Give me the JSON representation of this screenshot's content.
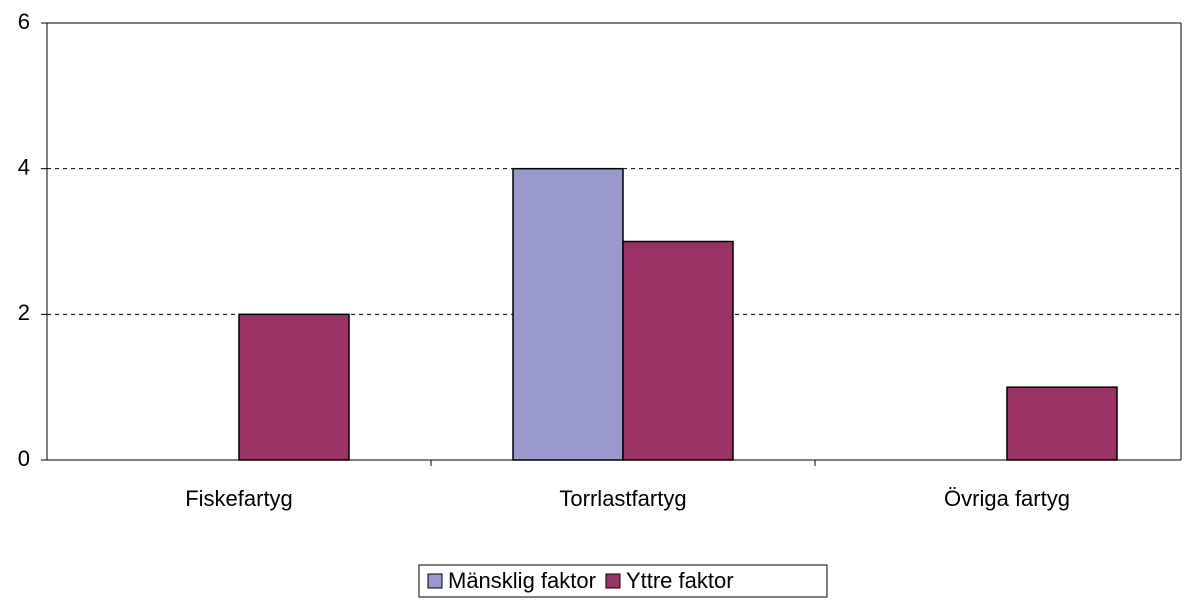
{
  "chart_data": {
    "type": "bar",
    "categories": [
      "Fiskefartyg",
      "Torrlastfartyg",
      "Övriga fartyg"
    ],
    "series": [
      {
        "name": "Mänsklig faktor",
        "color": "#9999cc",
        "values": [
          0,
          4,
          0
        ]
      },
      {
        "name": "Yttre faktor",
        "color": "#993366",
        "values": [
          2,
          3,
          1
        ]
      }
    ],
    "ylim": [
      0,
      6
    ],
    "yticks": [
      0,
      2,
      4,
      6
    ],
    "grid": true,
    "legend": "bottom"
  }
}
